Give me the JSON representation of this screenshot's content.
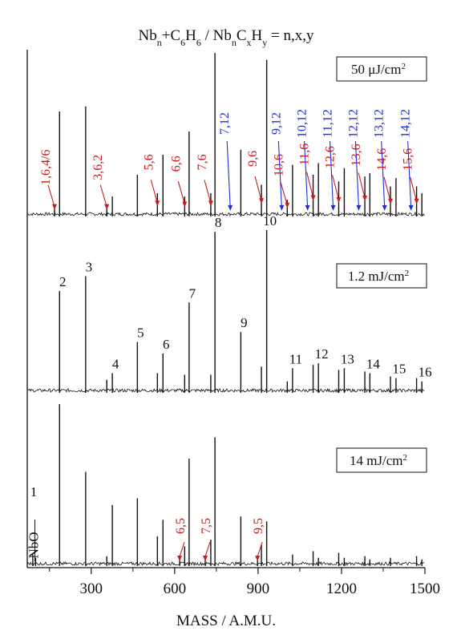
{
  "chart_data": {
    "type": "line",
    "title": "Nb_n+C_6H_6 / Nb_nC_xH_y = n,x,y",
    "title_parts": {
      "a": "Nb",
      "a_sub": "n",
      "b": "+C",
      "b_sub": "6",
      "c": "H",
      "c_sub": "6",
      "d": " / Nb",
      "d_sub": "n",
      "e": "C",
      "e_sub": "x",
      "f": "H",
      "f_sub": "y",
      "g": " = n,x,y"
    },
    "xlabel": "MASS / A.M.U.",
    "xlim": [
      70,
      1500
    ],
    "x_ticks": [
      300,
      600,
      900,
      1200,
      1500
    ],
    "grid": false,
    "colors": {
      "line": "#111111",
      "red": "#cc1a1a",
      "blue": "#1f2fd6"
    },
    "panels": [
      {
        "fluence_label": "50 μJ/cm",
        "fluence_sup": "2",
        "peaks": [
          {
            "x": 168,
            "h": 0.07
          },
          {
            "x": 186,
            "h": 0.63
          },
          {
            "x": 280,
            "h": 0.66
          },
          {
            "x": 356,
            "h": 0.07
          },
          {
            "x": 376,
            "h": 0.12
          },
          {
            "x": 466,
            "h": 0.25
          },
          {
            "x": 538,
            "h": 0.14
          },
          {
            "x": 558,
            "h": 0.37
          },
          {
            "x": 636,
            "h": 0.12
          },
          {
            "x": 652,
            "h": 0.51
          },
          {
            "x": 730,
            "h": 0.14
          },
          {
            "x": 745,
            "h": 0.98
          },
          {
            "x": 838,
            "h": 0.4
          },
          {
            "x": 912,
            "h": 0.19
          },
          {
            "x": 931,
            "h": 0.94
          },
          {
            "x": 1005,
            "h": 0.1
          },
          {
            "x": 1024,
            "h": 0.31
          },
          {
            "x": 1098,
            "h": 0.25
          },
          {
            "x": 1117,
            "h": 0.32
          },
          {
            "x": 1190,
            "h": 0.21
          },
          {
            "x": 1210,
            "h": 0.29
          },
          {
            "x": 1284,
            "h": 0.24
          },
          {
            "x": 1302,
            "h": 0.26
          },
          {
            "x": 1376,
            "h": 0.18
          },
          {
            "x": 1396,
            "h": 0.23
          },
          {
            "x": 1470,
            "h": 0.18
          },
          {
            "x": 1489,
            "h": 0.14
          }
        ],
        "annotations": [
          {
            "text": "1,6,4/6",
            "color": "red",
            "x": 168
          },
          {
            "text": "3,6,2",
            "color": "red",
            "x": 356
          },
          {
            "text": "5,6",
            "color": "red",
            "x": 538
          },
          {
            "text": "6,6",
            "color": "red",
            "x": 636
          },
          {
            "text": "7,6",
            "color": "red",
            "x": 730
          },
          {
            "text": "7,12",
            "color": "blue",
            "x": 800
          },
          {
            "text": "9,6",
            "color": "red",
            "x": 912
          },
          {
            "text": "9,12",
            "color": "blue",
            "x": 985
          },
          {
            "text": "10,6",
            "color": "red",
            "x": 1005
          },
          {
            "text": "10,12",
            "color": "blue",
            "x": 1078
          },
          {
            "text": "11,6",
            "color": "red",
            "x": 1098
          },
          {
            "text": "11,12",
            "color": "blue",
            "x": 1170
          },
          {
            "text": "12,6",
            "color": "red",
            "x": 1190
          },
          {
            "text": "12,12",
            "color": "blue",
            "x": 1262
          },
          {
            "text": "13,6",
            "color": "red",
            "x": 1284
          },
          {
            "text": "13,12",
            "color": "blue",
            "x": 1355
          },
          {
            "text": "14,6",
            "color": "red",
            "x": 1376
          },
          {
            "text": "14,12",
            "color": "blue",
            "x": 1450
          },
          {
            "text": "15,6",
            "color": "red",
            "x": 1470
          }
        ]
      },
      {
        "fluence_label": "1.2 mJ/cm",
        "fluence_sup": "2",
        "peaks": [
          {
            "x": 186,
            "h": 0.62
          },
          {
            "x": 280,
            "h": 0.71
          },
          {
            "x": 356,
            "h": 0.08
          },
          {
            "x": 376,
            "h": 0.12
          },
          {
            "x": 466,
            "h": 0.31
          },
          {
            "x": 538,
            "h": 0.12
          },
          {
            "x": 558,
            "h": 0.24
          },
          {
            "x": 636,
            "h": 0.11
          },
          {
            "x": 652,
            "h": 0.55
          },
          {
            "x": 730,
            "h": 0.11
          },
          {
            "x": 745,
            "h": 0.98
          },
          {
            "x": 838,
            "h": 0.37
          },
          {
            "x": 912,
            "h": 0.16
          },
          {
            "x": 931,
            "h": 0.99
          },
          {
            "x": 1005,
            "h": 0.07
          },
          {
            "x": 1024,
            "h": 0.15
          },
          {
            "x": 1098,
            "h": 0.17
          },
          {
            "x": 1117,
            "h": 0.18
          },
          {
            "x": 1190,
            "h": 0.14
          },
          {
            "x": 1210,
            "h": 0.15
          },
          {
            "x": 1284,
            "h": 0.13
          },
          {
            "x": 1302,
            "h": 0.12
          },
          {
            "x": 1376,
            "h": 0.1
          },
          {
            "x": 1396,
            "h": 0.09
          },
          {
            "x": 1470,
            "h": 0.09
          },
          {
            "x": 1489,
            "h": 0.07
          }
        ],
        "annotations": [
          {
            "text": "2",
            "color": "black",
            "x": 186
          },
          {
            "text": "3",
            "color": "black",
            "x": 280
          },
          {
            "text": "4",
            "color": "black",
            "x": 376
          },
          {
            "text": "5",
            "color": "black",
            "x": 466
          },
          {
            "text": "6",
            "color": "black",
            "x": 558
          },
          {
            "text": "7",
            "color": "black",
            "x": 652
          },
          {
            "text": "8",
            "color": "black",
            "x": 745
          },
          {
            "text": "9",
            "color": "black",
            "x": 838
          },
          {
            "text": "10",
            "color": "black",
            "x": 931
          },
          {
            "text": "11",
            "color": "black",
            "x": 1024
          },
          {
            "text": "12",
            "color": "black",
            "x": 1117
          },
          {
            "text": "13",
            "color": "black",
            "x": 1210
          },
          {
            "text": "14",
            "color": "black",
            "x": 1302
          },
          {
            "text": "15",
            "color": "black",
            "x": 1396
          },
          {
            "text": "16",
            "color": "black",
            "x": 1489
          }
        ]
      },
      {
        "fluence_label": "14 mJ/cm",
        "fluence_sup": "2",
        "peaks": [
          {
            "x": 90,
            "h": 0.07
          },
          {
            "x": 100,
            "h": 0.05
          },
          {
            "x": 186,
            "h": 0.98
          },
          {
            "x": 280,
            "h": 0.57
          },
          {
            "x": 356,
            "h": 0.06
          },
          {
            "x": 376,
            "h": 0.37
          },
          {
            "x": 466,
            "h": 0.41
          },
          {
            "x": 538,
            "h": 0.18
          },
          {
            "x": 558,
            "h": 0.28
          },
          {
            "x": 618,
            "h": 0.05
          },
          {
            "x": 636,
            "h": 0.12
          },
          {
            "x": 652,
            "h": 0.65
          },
          {
            "x": 710,
            "h": 0.05
          },
          {
            "x": 730,
            "h": 0.16
          },
          {
            "x": 745,
            "h": 0.78
          },
          {
            "x": 838,
            "h": 0.3
          },
          {
            "x": 898,
            "h": 0.04
          },
          {
            "x": 912,
            "h": 0.13
          },
          {
            "x": 931,
            "h": 0.27
          },
          {
            "x": 1024,
            "h": 0.07
          },
          {
            "x": 1098,
            "h": 0.09
          },
          {
            "x": 1117,
            "h": 0.05
          },
          {
            "x": 1190,
            "h": 0.08
          },
          {
            "x": 1210,
            "h": 0.05
          },
          {
            "x": 1284,
            "h": 0.06
          },
          {
            "x": 1302,
            "h": 0.04
          },
          {
            "x": 1376,
            "h": 0.05
          },
          {
            "x": 1470,
            "h": 0.06
          },
          {
            "x": 1489,
            "h": 0.04
          }
        ],
        "annotations": [
          {
            "text": "1",
            "color": "black",
            "x": 93
          },
          {
            "text": "NbO",
            "color": "black",
            "x": 109
          },
          {
            "text": "6,5",
            "color": "red",
            "x": 618
          },
          {
            "text": "7,5",
            "color": "red",
            "x": 710
          },
          {
            "text": "9,5",
            "color": "red",
            "x": 898
          }
        ]
      }
    ]
  }
}
